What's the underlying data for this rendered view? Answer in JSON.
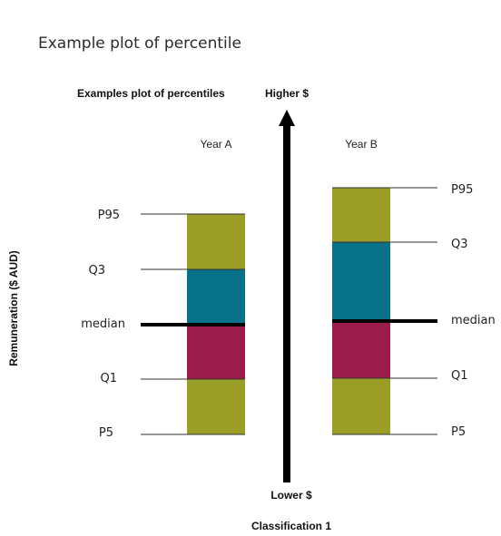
{
  "title": "Example plot of percentile",
  "subtitle": "Examples plot of percentiles",
  "y_axis_label": "Remuneration ($ AUD)",
  "x_axis_label": "Classification 1",
  "arrow": {
    "top_label": "Higher $",
    "bottom_label": "Lower $"
  },
  "colors": {
    "outer_band": "#9b9e26",
    "upper_mid_band": "#067189",
    "lower_mid_band": "#9b1b4b",
    "median_line": "#000000",
    "guide_line": "#333333"
  },
  "year_a": {
    "label": "Year A",
    "p95": "P95",
    "q3": "Q3",
    "median": "median",
    "q1": "Q1",
    "p5": "P5"
  },
  "year_b": {
    "label": "Year B",
    "p95": "P95",
    "q3": "Q3",
    "median": "median",
    "q1": "Q1",
    "p5": "P5"
  }
}
